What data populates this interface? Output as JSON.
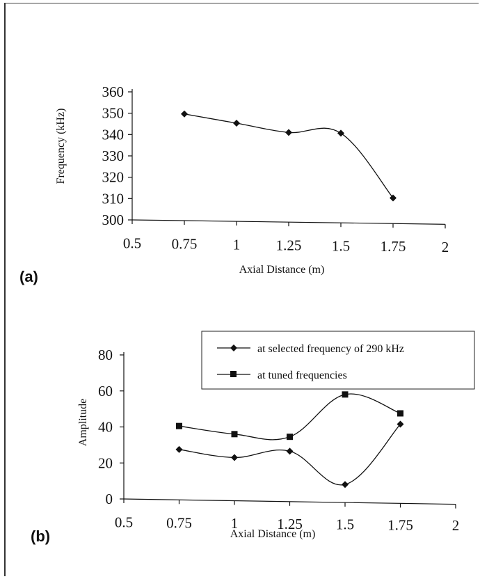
{
  "chart_data": [
    {
      "type": "line",
      "panel_label": "(a)",
      "xlabel": "Axial Distance (m)",
      "ylabel": "Frequency (kHz)",
      "xlim": [
        0.5,
        2
      ],
      "ylim": [
        300,
        360
      ],
      "x_ticks": [
        "0.5",
        "0.75",
        "1",
        "1.25",
        "1.5",
        "1.75",
        "2"
      ],
      "y_ticks": [
        "300",
        "310",
        "320",
        "330",
        "340",
        "350",
        "360"
      ],
      "series": [
        {
          "x": [
            0.75,
            1,
            1.25,
            1.5,
            1.75
          ],
          "values": [
            350,
            346,
            342,
            342,
            312
          ],
          "marker": "diamond",
          "color": "#111111"
        }
      ],
      "grid": false,
      "legend": "none"
    },
    {
      "type": "line",
      "panel_label": "(b)",
      "xlabel": "Axial Distance (m)",
      "ylabel": "Amplitude",
      "xlim": [
        0.5,
        2
      ],
      "ylim": [
        0,
        80
      ],
      "x_ticks": [
        "0.5",
        "0.75",
        "1",
        "1.25",
        "1.5",
        "1.75",
        "2"
      ],
      "y_ticks": [
        "0",
        "20",
        "40",
        "60",
        "80"
      ],
      "series": [
        {
          "name": "at selected frequency of 290 kHz",
          "x": [
            0.75,
            1,
            1.25,
            1.5,
            1.75
          ],
          "values": [
            28,
            24,
            28,
            10,
            44
          ],
          "marker": "diamond",
          "color": "#111111"
        },
        {
          "name": "at tuned frequencies",
          "x": [
            0.75,
            1,
            1.25,
            1.5,
            1.75
          ],
          "values": [
            41,
            37,
            36,
            60,
            50
          ],
          "marker": "square",
          "color": "#111111"
        }
      ],
      "grid": false,
      "legend": "top-right"
    }
  ]
}
